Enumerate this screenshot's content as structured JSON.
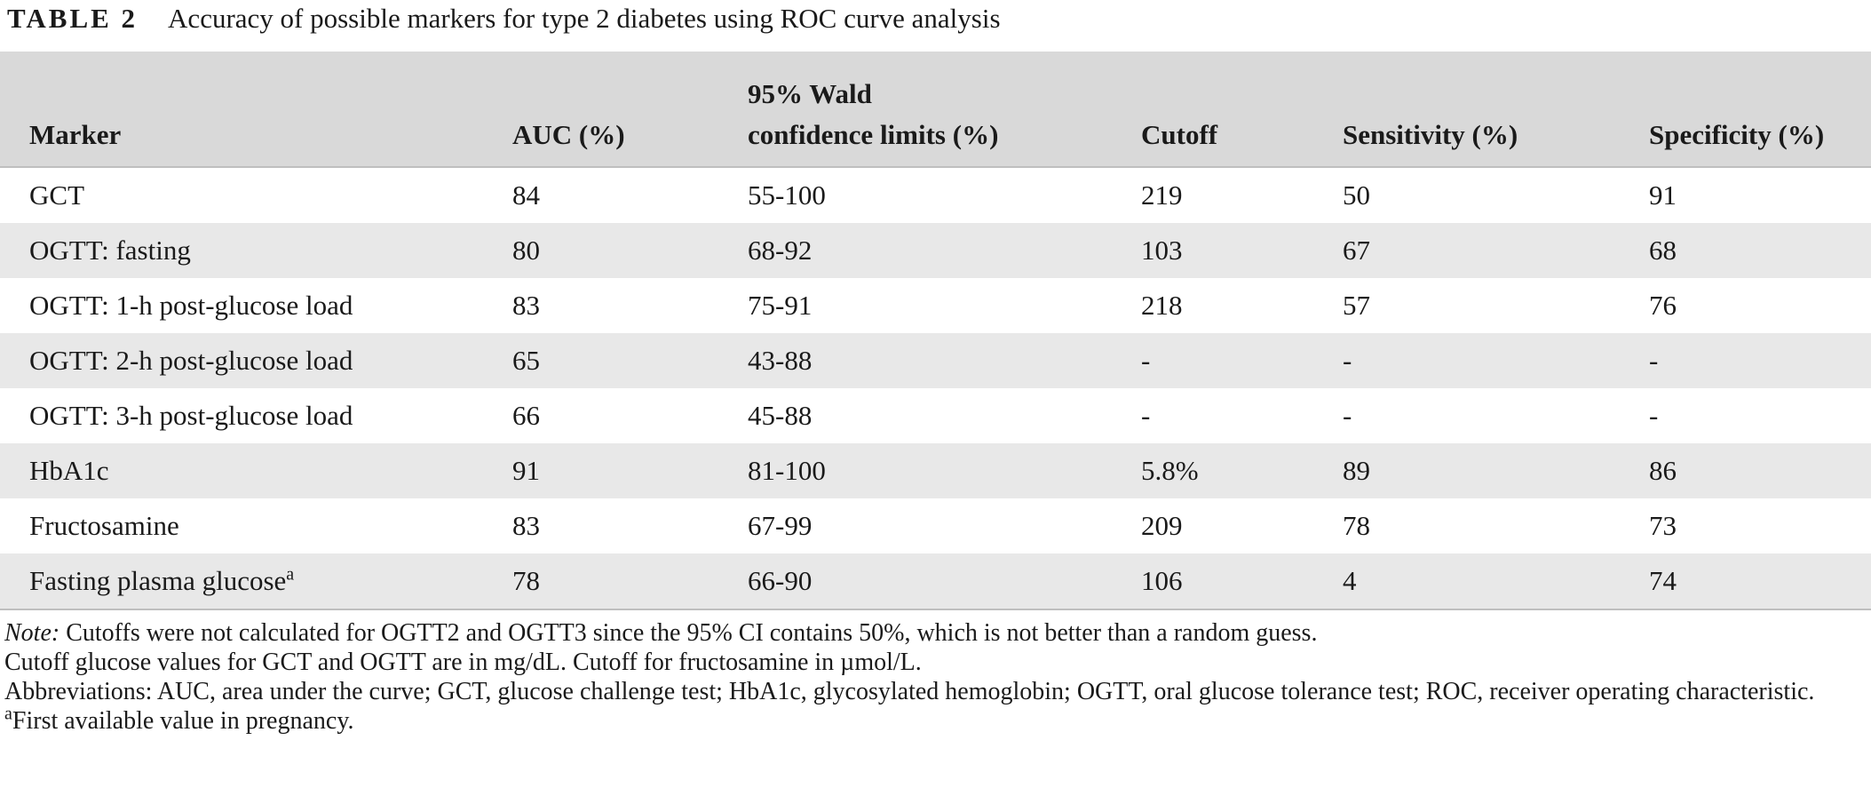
{
  "caption": {
    "label": "TABLE 2",
    "title": "Accuracy of possible markers for type 2 diabetes using ROC curve analysis"
  },
  "table": {
    "headers": {
      "marker": "Marker",
      "auc": "AUC (%)",
      "wald_line1": "95% Wald",
      "wald_line2": "confidence limits (%)",
      "cutoff": "Cutoff",
      "sensitivity": "Sensitivity (%)",
      "specificity": "Specificity (%)"
    },
    "rows": [
      {
        "marker": "GCT",
        "sup": "",
        "auc": "84",
        "ci": "55-100",
        "cutoff": "219",
        "sensitivity": "50",
        "specificity": "91"
      },
      {
        "marker": "OGTT: fasting",
        "sup": "",
        "auc": "80",
        "ci": "68-92",
        "cutoff": "103",
        "sensitivity": "67",
        "specificity": "68"
      },
      {
        "marker": "OGTT: 1-h post-glucose load",
        "sup": "",
        "auc": "83",
        "ci": "75-91",
        "cutoff": "218",
        "sensitivity": "57",
        "specificity": "76"
      },
      {
        "marker": "OGTT: 2-h post-glucose load",
        "sup": "",
        "auc": "65",
        "ci": "43-88",
        "cutoff": "-",
        "sensitivity": "-",
        "specificity": "-"
      },
      {
        "marker": "OGTT: 3-h post-glucose load",
        "sup": "",
        "auc": "66",
        "ci": "45-88",
        "cutoff": "-",
        "sensitivity": "-",
        "specificity": "-"
      },
      {
        "marker": "HbA1c",
        "sup": "",
        "auc": "91",
        "ci": "81-100",
        "cutoff": "5.8%",
        "sensitivity": "89",
        "specificity": "86"
      },
      {
        "marker": "Fructosamine",
        "sup": "",
        "auc": "83",
        "ci": "67-99",
        "cutoff": "209",
        "sensitivity": "78",
        "specificity": "73"
      },
      {
        "marker": "Fasting plasma glucose",
        "sup": "a",
        "auc": "78",
        "ci": "66-90",
        "cutoff": "106",
        "sensitivity": "4",
        "specificity": "74"
      }
    ]
  },
  "notes": {
    "note_label": "Note:",
    "note_text": " Cutoffs were not calculated for OGTT2 and OGTT3 since the 95% CI contains 50%, which is not better than a random guess.",
    "units": "Cutoff glucose values for GCT and OGTT are in mg/dL. Cutoff for fructosamine in µmol/L.",
    "abbreviations": "Abbreviations: AUC, area under the curve; GCT, glucose challenge test; HbA1c, glycosylated hemoglobin; OGTT, oral glucose tolerance test; ROC, receiver operating characteristic.",
    "footnote_mark": "a",
    "footnote_text": "First available value in pregnancy."
  }
}
